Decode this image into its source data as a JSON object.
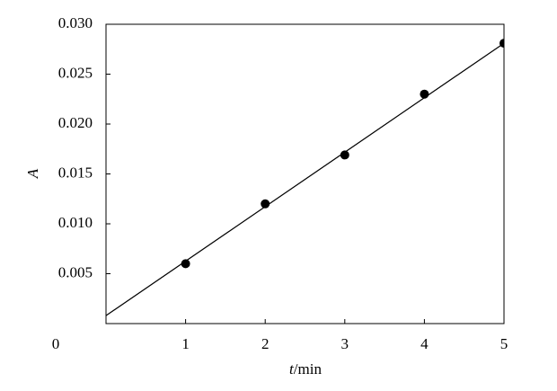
{
  "chart_data": {
    "type": "scatter",
    "xlabel": "t/min",
    "ylabel": "A",
    "x": [
      1,
      2,
      3,
      4,
      5
    ],
    "values": [
      0.006,
      0.012,
      0.0169,
      0.023,
      0.0281
    ],
    "color": "#000000",
    "fit_line": {
      "x": [
        0,
        5
      ],
      "y": [
        0.0008,
        0.0281
      ],
      "color": "#000000"
    },
    "xlim": [
      0,
      5
    ],
    "ylim": [
      0,
      0.03
    ],
    "xticks": [
      0,
      1,
      2,
      3,
      4,
      5
    ],
    "yticks": [
      {
        "value": 0.005,
        "label": "0.005"
      },
      {
        "value": 0.01,
        "label": "0.010"
      },
      {
        "value": 0.015,
        "label": "0.015"
      },
      {
        "value": 0.02,
        "label": "0.020"
      },
      {
        "value": 0.025,
        "label": "0.025"
      },
      {
        "value": 0.03,
        "label": "0.030"
      }
    ]
  }
}
